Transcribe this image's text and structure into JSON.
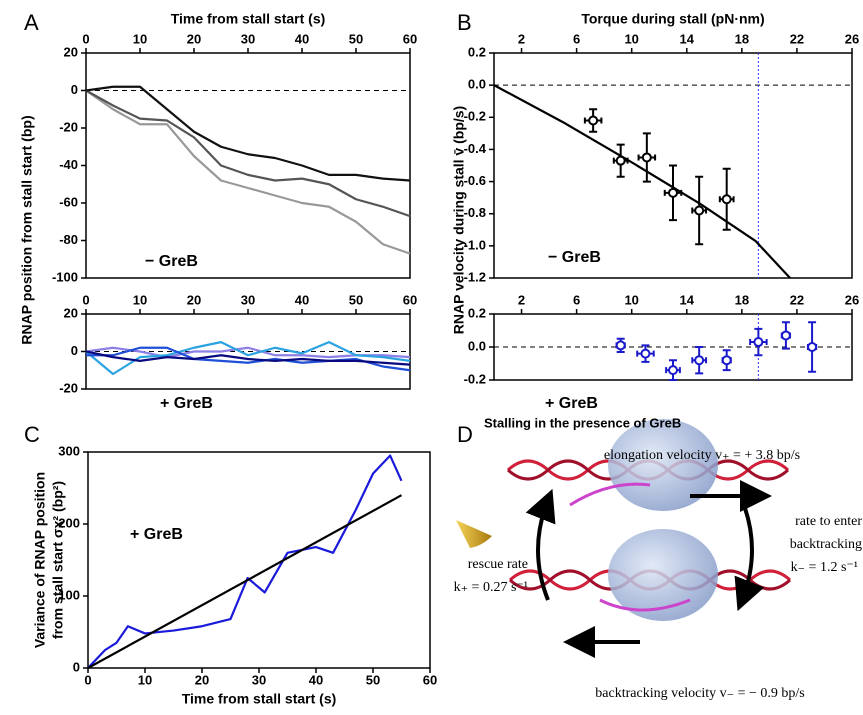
{
  "chart_data": [
    {
      "type": "line",
      "panel": "A",
      "xlabel": "Time from stall start (s)",
      "ylabel": "RNAP position from stall start (bp)",
      "annotation": "− GreB",
      "x": [
        0,
        5,
        10,
        15,
        20,
        25,
        30,
        35,
        40,
        45,
        50,
        55,
        60
      ],
      "series": [
        {
          "color": "#999999",
          "values": [
            0,
            -10,
            -18,
            -18,
            -35,
            -48,
            -52,
            -56,
            -60,
            -62,
            -70,
            -82,
            -87
          ]
        },
        {
          "color": "#555555",
          "values": [
            0,
            -8,
            -15,
            -16,
            -25,
            -40,
            -45,
            -48,
            -47,
            -50,
            -58,
            -62,
            -67
          ]
        },
        {
          "color": "#111111",
          "values": [
            0,
            2,
            2,
            -10,
            -22,
            -30,
            -34,
            -36,
            -40,
            -45,
            -45,
            -47,
            -48
          ]
        }
      ],
      "xlim": [
        0,
        60
      ],
      "xticks": [
        0,
        10,
        20,
        30,
        40,
        50,
        60
      ],
      "ylim": [
        -100,
        20
      ],
      "yticks": [
        20,
        0,
        -20,
        -40,
        -60,
        -80,
        -100
      ],
      "reference_line": {
        "y": 0,
        "style": "dashed"
      }
    },
    {
      "type": "line",
      "annotation": "+ GreB",
      "x": [
        0,
        5,
        10,
        15,
        20,
        25,
        30,
        35,
        40,
        45,
        50,
        55,
        60
      ],
      "series": [
        {
          "color": "#8c80e6",
          "values": [
            0,
            2,
            0,
            -3,
            0,
            0,
            2,
            -2,
            -2,
            -3,
            -2,
            -2,
            -3
          ]
        },
        {
          "color": "#2aa3e0",
          "values": [
            0,
            -12,
            -3,
            -2,
            2,
            5,
            -2,
            2,
            -1,
            5,
            -2,
            -3,
            -5
          ]
        },
        {
          "color": "#1e4fd6",
          "values": [
            -2,
            -2,
            2,
            2,
            -4,
            -5,
            -6,
            -4,
            -6,
            -5,
            -4,
            -8,
            -10
          ]
        },
        {
          "color": "#0a0a80",
          "values": [
            0,
            -3,
            -5,
            -3,
            -4,
            -2,
            -4,
            -5,
            -4,
            -5,
            -5,
            -6,
            -7
          ]
        }
      ],
      "xlim": [
        0,
        60
      ],
      "xticks": [
        0,
        10,
        20,
        30,
        40,
        50,
        60
      ],
      "ylim": [
        -20,
        20
      ],
      "yticks": [
        20,
        0,
        -20
      ],
      "reference_line": {
        "y": 0,
        "style": "dashed"
      }
    },
    {
      "type": "scatter",
      "panel": "B",
      "xlabel": "Torque during stall (pN·nm)",
      "ylabel": "RNAP velocity during stall v̄ (bp/s)",
      "annotation": "− GreB",
      "color": "#000000",
      "x": [
        7.2,
        9.2,
        11.1,
        13.0,
        14.9,
        16.9
      ],
      "values": [
        -0.22,
        -0.47,
        -0.45,
        -0.67,
        -0.78,
        -0.71
      ],
      "xerr": [
        0.6,
        0.5,
        0.6,
        0.6,
        0.5,
        0.5
      ],
      "yerr": [
        0.07,
        0.1,
        0.15,
        0.17,
        0.21,
        0.19
      ],
      "fit": {
        "x": [
          0,
          5,
          10,
          15,
          19,
          21.5
        ],
        "values": [
          0,
          -0.23,
          -0.48,
          -0.74,
          -0.97,
          -1.2
        ]
      },
      "xlim": [
        0,
        26
      ],
      "xticks": [
        2,
        6,
        10,
        14,
        18,
        22,
        26
      ],
      "ylim": [
        -1.2,
        0.2
      ],
      "yticks": [
        0.2,
        {
          "value": 0,
          "label": "0.0"
        },
        -0.2,
        -0.4,
        -0.6,
        -0.8,
        {
          "value": -1,
          "label": "-1.0"
        },
        -1.2
      ],
      "reference_line": {
        "y": 0,
        "style": "dashed"
      },
      "vline": {
        "x": 19.2,
        "color": "#3333ff"
      }
    },
    {
      "type": "scatter",
      "annotation": "+ GreB",
      "color": "#1a1acc",
      "x": [
        9.2,
        11.0,
        13.0,
        14.9,
        16.9,
        19.2,
        21.2,
        23.1
      ],
      "values": [
        0.01,
        -0.04,
        -0.14,
        -0.08,
        -0.08,
        0.03,
        0.07,
        0.0
      ],
      "xerr": [
        0.3,
        0.6,
        0.5,
        0.5,
        0.3,
        0.6,
        0.3,
        0.3
      ],
      "yerr": [
        0.04,
        0.05,
        0.06,
        0.08,
        0.06,
        0.08,
        0.08,
        0.15
      ],
      "xlim": [
        0,
        26
      ],
      "xticks": [
        2,
        6,
        10,
        14,
        18,
        22,
        26
      ],
      "ylim": [
        -0.2,
        0.2
      ],
      "yticks": [
        0.2,
        {
          "value": 0,
          "label": "0.0"
        },
        -0.2
      ],
      "reference_line": {
        "y": 0,
        "style": "dashed"
      },
      "vline": {
        "x": 19.2,
        "color": "#3333ff"
      }
    },
    {
      "type": "line",
      "panel": "C",
      "xlabel": "Time from stall start (s)",
      "ylabel": [
        "Variance of RNAP position",
        "from stall start σx² (bp²)"
      ],
      "annotation": "+ GreB",
      "series": [
        {
          "color": "#1a1adb",
          "x": [
            0,
            3,
            5,
            7,
            10,
            15,
            20,
            25,
            28,
            31,
            35,
            40,
            43,
            47,
            50,
            53,
            55
          ],
          "values": [
            0,
            25,
            35,
            58,
            48,
            52,
            58,
            68,
            125,
            105,
            160,
            168,
            160,
            220,
            270,
            295,
            260
          ]
        },
        {
          "color": "#000000",
          "x": [
            0,
            55
          ],
          "values": [
            0,
            240
          ]
        }
      ],
      "xlim": [
        0,
        60
      ],
      "xticks": [
        0,
        10,
        20,
        30,
        40,
        50,
        60
      ],
      "ylim": [
        0,
        300
      ],
      "yticks": [
        0,
        100,
        200,
        300
      ]
    }
  ],
  "diagram": {
    "panel": "D",
    "title": "Stalling in the presence of GreB",
    "elongation": "elongation velocity v₊ = + 3.8 bp/s",
    "enter": [
      "rate to enter",
      "backtracking",
      "k₋ = 1.2 s⁻¹"
    ],
    "rescue": [
      "rescue rate",
      "k₊ = 0.27 s⁻¹"
    ],
    "backtracking": "backtracking velocity v₋ = − 0.9 bp/s"
  }
}
